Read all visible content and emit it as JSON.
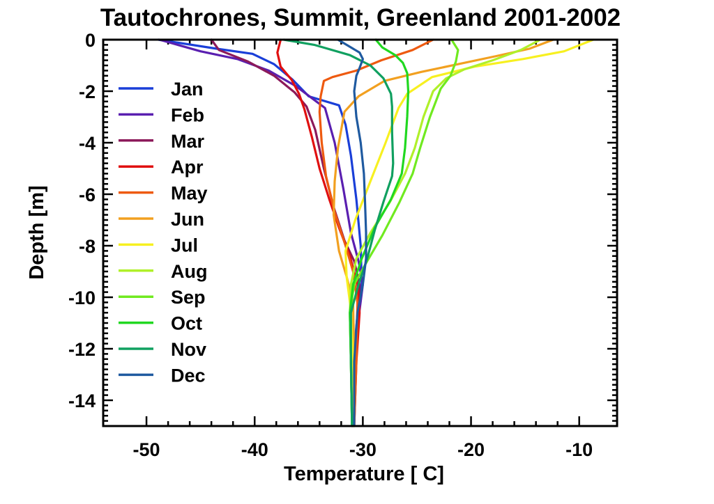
{
  "chart_data": {
    "type": "line",
    "title": "Tautochrones, Summit, Greenland 2001-2002",
    "xlabel": "Temperature [ C]",
    "ylabel": "Depth [m]",
    "xlim": [
      -54,
      -6.5
    ],
    "ylim": [
      -15,
      0
    ],
    "x_ticks": [
      -50,
      -40,
      -30,
      -20,
      -10
    ],
    "y_ticks": [
      0,
      -2,
      -4,
      -6,
      -8,
      -10,
      -12,
      -14
    ],
    "grid": false,
    "legend_position": "left",
    "series": [
      {
        "name": "Jan",
        "color": "#1a3fd8",
        "points": [
          [
            -48.9,
            0
          ],
          [
            -43.5,
            -0.35
          ],
          [
            -40.2,
            -0.55
          ],
          [
            -38.2,
            -0.95
          ],
          [
            -36.5,
            -1.55
          ],
          [
            -35.0,
            -2.2
          ],
          [
            -32.2,
            -2.55
          ],
          [
            -31.6,
            -3.3
          ],
          [
            -31.1,
            -4.5
          ],
          [
            -30.6,
            -6.2
          ],
          [
            -30.2,
            -8.0
          ],
          [
            -30.1,
            -9.5
          ],
          [
            -30.5,
            -10.7
          ],
          [
            -30.9,
            -12.5
          ],
          [
            -31.0,
            -15.0
          ]
        ]
      },
      {
        "name": "Feb",
        "color": "#5a1fb0",
        "points": [
          [
            -48.8,
            0
          ],
          [
            -45.0,
            -0.45
          ],
          [
            -41.6,
            -0.75
          ],
          [
            -38.7,
            -1.2
          ],
          [
            -36.2,
            -1.8
          ],
          [
            -34.3,
            -2.4
          ],
          [
            -33.5,
            -2.65
          ],
          [
            -32.6,
            -4.0
          ],
          [
            -31.8,
            -5.8
          ],
          [
            -31.1,
            -7.5
          ],
          [
            -30.4,
            -8.6
          ],
          [
            -30.0,
            -9.5
          ],
          [
            -30.3,
            -10.5
          ],
          [
            -30.8,
            -12.5
          ],
          [
            -30.9,
            -15.0
          ]
        ]
      },
      {
        "name": "Mar",
        "color": "#8c1a5a",
        "points": [
          [
            -44.0,
            0
          ],
          [
            -43.3,
            -0.4
          ],
          [
            -40.6,
            -0.85
          ],
          [
            -38.2,
            -1.4
          ],
          [
            -36.3,
            -2.05
          ],
          [
            -35.2,
            -2.6
          ],
          [
            -34.4,
            -3.5
          ],
          [
            -33.6,
            -5.0
          ],
          [
            -32.7,
            -6.5
          ],
          [
            -31.7,
            -7.8
          ],
          [
            -30.8,
            -8.6
          ],
          [
            -30.3,
            -9.5
          ],
          [
            -30.4,
            -10.5
          ],
          [
            -30.8,
            -12.5
          ],
          [
            -31.0,
            -15.0
          ]
        ]
      },
      {
        "name": "Apr",
        "color": "#e01010",
        "points": [
          [
            -37.6,
            0
          ],
          [
            -37.9,
            -0.5
          ],
          [
            -37.6,
            -1.05
          ],
          [
            -36.6,
            -1.55
          ],
          [
            -35.9,
            -2.1
          ],
          [
            -35.4,
            -2.7
          ],
          [
            -34.7,
            -3.8
          ],
          [
            -34.0,
            -5.0
          ],
          [
            -33.1,
            -6.2
          ],
          [
            -32.2,
            -7.3
          ],
          [
            -31.2,
            -8.4
          ],
          [
            -30.5,
            -9.5
          ],
          [
            -30.3,
            -10.6
          ],
          [
            -30.6,
            -12.5
          ],
          [
            -30.8,
            -15.0
          ]
        ]
      },
      {
        "name": "May",
        "color": "#ee5a10",
        "points": [
          [
            -23.5,
            0
          ],
          [
            -25.4,
            -0.4
          ],
          [
            -28.3,
            -0.8
          ],
          [
            -30.6,
            -1.2
          ],
          [
            -32.8,
            -1.45
          ],
          [
            -33.6,
            -1.6
          ],
          [
            -33.9,
            -2.2
          ],
          [
            -34.0,
            -2.8
          ],
          [
            -33.8,
            -4.0
          ],
          [
            -33.4,
            -5.3
          ],
          [
            -32.6,
            -6.7
          ],
          [
            -31.6,
            -8.0
          ],
          [
            -30.9,
            -9.0
          ],
          [
            -30.5,
            -10.2
          ],
          [
            -30.6,
            -12.5
          ],
          [
            -30.8,
            -15.0
          ]
        ]
      },
      {
        "name": "Jun",
        "color": "#f2a020",
        "points": [
          [
            -12.4,
            0
          ],
          [
            -14.6,
            -0.35
          ],
          [
            -17.8,
            -0.65
          ],
          [
            -21.2,
            -0.95
          ],
          [
            -24.6,
            -1.25
          ],
          [
            -28.0,
            -1.6
          ],
          [
            -30.4,
            -2.2
          ],
          [
            -31.7,
            -2.8
          ],
          [
            -32.3,
            -4.2
          ],
          [
            -32.6,
            -5.5
          ],
          [
            -32.7,
            -6.8
          ],
          [
            -32.2,
            -8.2
          ],
          [
            -31.5,
            -9.2
          ],
          [
            -30.9,
            -10.2
          ],
          [
            -30.8,
            -12.5
          ],
          [
            -30.9,
            -15.0
          ]
        ]
      },
      {
        "name": "Jul",
        "color": "#f7f020",
        "points": [
          [
            -8.7,
            0
          ],
          [
            -11.4,
            -0.45
          ],
          [
            -15.2,
            -0.75
          ],
          [
            -19.7,
            -1.05
          ],
          [
            -23.6,
            -1.45
          ],
          [
            -25.9,
            -2.1
          ],
          [
            -26.7,
            -2.65
          ],
          [
            -27.9,
            -4.0
          ],
          [
            -29.3,
            -5.5
          ],
          [
            -30.7,
            -7.0
          ],
          [
            -31.6,
            -8.2
          ],
          [
            -31.5,
            -9.2
          ],
          [
            -31.1,
            -10.5
          ],
          [
            -30.9,
            -12.5
          ],
          [
            -30.9,
            -15.0
          ]
        ]
      },
      {
        "name": "Aug",
        "color": "#b0f02a",
        "points": [
          [
            -13.6,
            0
          ],
          [
            -15.4,
            -0.4
          ],
          [
            -18.0,
            -0.8
          ],
          [
            -20.6,
            -1.15
          ],
          [
            -22.3,
            -1.5
          ],
          [
            -23.5,
            -2.0
          ],
          [
            -24.4,
            -3.0
          ],
          [
            -25.2,
            -4.2
          ],
          [
            -26.1,
            -5.2
          ],
          [
            -27.5,
            -6.3
          ],
          [
            -29.3,
            -7.5
          ],
          [
            -30.6,
            -8.5
          ],
          [
            -31.1,
            -9.5
          ],
          [
            -31.2,
            -10.6
          ],
          [
            -31.1,
            -12.5
          ],
          [
            -31.0,
            -15.0
          ]
        ]
      },
      {
        "name": "Sep",
        "color": "#70ea20",
        "points": [
          [
            -21.8,
            0
          ],
          [
            -21.2,
            -0.4
          ],
          [
            -21.4,
            -0.85
          ],
          [
            -21.9,
            -1.4
          ],
          [
            -22.8,
            -1.9
          ],
          [
            -23.8,
            -3.0
          ],
          [
            -24.7,
            -4.2
          ],
          [
            -25.4,
            -5.2
          ],
          [
            -26.6,
            -6.3
          ],
          [
            -28.2,
            -7.6
          ],
          [
            -29.6,
            -8.6
          ],
          [
            -30.8,
            -9.5
          ],
          [
            -31.2,
            -10.6
          ],
          [
            -31.1,
            -12.5
          ],
          [
            -31.0,
            -15.0
          ]
        ]
      },
      {
        "name": "Oct",
        "color": "#20d820",
        "points": [
          [
            -28.8,
            0
          ],
          [
            -28.2,
            -0.3
          ],
          [
            -27.0,
            -0.6
          ],
          [
            -26.3,
            -0.9
          ],
          [
            -25.9,
            -1.3
          ],
          [
            -25.8,
            -2.0
          ],
          [
            -25.9,
            -3.0
          ],
          [
            -26.1,
            -4.2
          ],
          [
            -26.4,
            -5.2
          ],
          [
            -27.4,
            -6.2
          ],
          [
            -28.9,
            -7.3
          ],
          [
            -30.1,
            -8.5
          ],
          [
            -30.9,
            -9.5
          ],
          [
            -31.2,
            -10.6
          ],
          [
            -31.1,
            -12.5
          ],
          [
            -31.0,
            -15.0
          ]
        ]
      },
      {
        "name": "Nov",
        "color": "#10a060",
        "points": [
          [
            -37.3,
            0
          ],
          [
            -34.5,
            -0.2
          ],
          [
            -31.2,
            -0.6
          ],
          [
            -29.3,
            -1.0
          ],
          [
            -28.1,
            -1.5
          ],
          [
            -27.4,
            -2.1
          ],
          [
            -27.3,
            -2.6
          ],
          [
            -27.3,
            -3.6
          ],
          [
            -27.2,
            -4.8
          ],
          [
            -27.3,
            -5.3
          ],
          [
            -28.1,
            -6.3
          ],
          [
            -28.9,
            -7.4
          ],
          [
            -29.6,
            -8.5
          ],
          [
            -30.4,
            -9.5
          ],
          [
            -31.1,
            -10.6
          ],
          [
            -31.1,
            -12.5
          ],
          [
            -31.0,
            -15.0
          ]
        ]
      },
      {
        "name": "Dec",
        "color": "#1f5aa0",
        "points": [
          [
            -32.3,
            0
          ],
          [
            -31.3,
            -0.25
          ],
          [
            -30.3,
            -0.5
          ],
          [
            -30.0,
            -0.75
          ],
          [
            -30.3,
            -1.1
          ],
          [
            -30.6,
            -1.4
          ],
          [
            -30.8,
            -2.0
          ],
          [
            -30.6,
            -3.0
          ],
          [
            -30.2,
            -4.0
          ],
          [
            -29.9,
            -5.2
          ],
          [
            -29.8,
            -6.3
          ],
          [
            -29.7,
            -7.5
          ],
          [
            -29.7,
            -8.5
          ],
          [
            -30.0,
            -9.5
          ],
          [
            -30.5,
            -10.6
          ],
          [
            -30.8,
            -12.5
          ],
          [
            -30.8,
            -15.0
          ]
        ]
      }
    ]
  }
}
